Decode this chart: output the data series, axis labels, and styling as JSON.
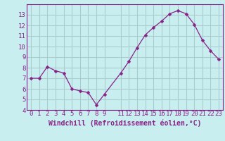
{
  "x": [
    0,
    1,
    2,
    3,
    4,
    5,
    6,
    7,
    8,
    9,
    11,
    12,
    13,
    14,
    15,
    16,
    17,
    18,
    19,
    20,
    21,
    22,
    23
  ],
  "y": [
    7.0,
    7.0,
    8.1,
    7.7,
    7.5,
    6.0,
    5.8,
    5.65,
    4.5,
    5.5,
    7.5,
    8.6,
    9.9,
    11.1,
    11.8,
    12.4,
    13.1,
    13.4,
    13.1,
    12.1,
    10.6,
    9.6,
    8.8
  ],
  "line_color": "#882288",
  "marker": "D",
  "marker_size": 2.5,
  "bg_color": "#c8eef0",
  "grid_color": "#aacccc",
  "xlabel": "Windchill (Refroidissement éolien,°C)",
  "xlabel_fontsize": 7,
  "tick_fontsize": 6.5,
  "ylim": [
    4,
    14
  ],
  "xlim": [
    -0.5,
    23.5
  ],
  "yticks": [
    4,
    5,
    6,
    7,
    8,
    9,
    10,
    11,
    12,
    13
  ],
  "xticks": [
    0,
    1,
    2,
    3,
    4,
    5,
    6,
    7,
    8,
    9,
    11,
    12,
    13,
    14,
    15,
    16,
    17,
    18,
    19,
    20,
    21,
    22,
    23
  ]
}
